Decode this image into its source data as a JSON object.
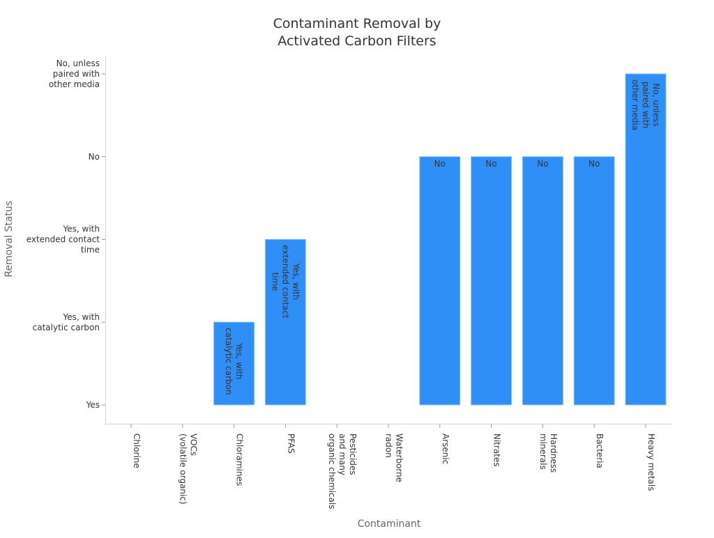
{
  "chart_data": {
    "type": "bar",
    "title": "Contaminant Removal by\nActivated Carbon Filters",
    "xlabel": "Contaminant",
    "ylabel": "Removal Status",
    "y_categories": [
      "Yes",
      "Yes, with\ncatalytic carbon",
      "Yes, with\nextended contact\ntime",
      "No",
      "No, unless\npaired with\nother media"
    ],
    "categories": [
      "Chlorine",
      "VOCs\n(volatile organic)",
      "Chloramines",
      "PFAS",
      "Pesticides\nand many\norganic chemicals",
      "Waterborne\nradon",
      "Arsenic",
      "Nitrates",
      "Hardness\nminerals",
      "Bacteria",
      "Heavy metals"
    ],
    "values": [
      "Yes",
      "Yes",
      "Yes, with\ncatalytic carbon",
      "Yes, with\nextended contact\ntime",
      "Yes",
      "Yes",
      "No",
      "No",
      "No",
      "No",
      "No, unless\npaired with\nother media"
    ],
    "data_labels": [
      "",
      "",
      "Yes, with\ncatalytic carbon",
      "Yes, with\nextended contact\ntime",
      "",
      "",
      "No",
      "No",
      "No",
      "No",
      "No, unless\npaired with\nother media"
    ],
    "grid": false,
    "legend": "none",
    "colors": {
      "bar": "#2f8ff7",
      "bar_edge": "#8fc1fb",
      "text": "#333333",
      "axis": "#d0d0d0"
    }
  }
}
